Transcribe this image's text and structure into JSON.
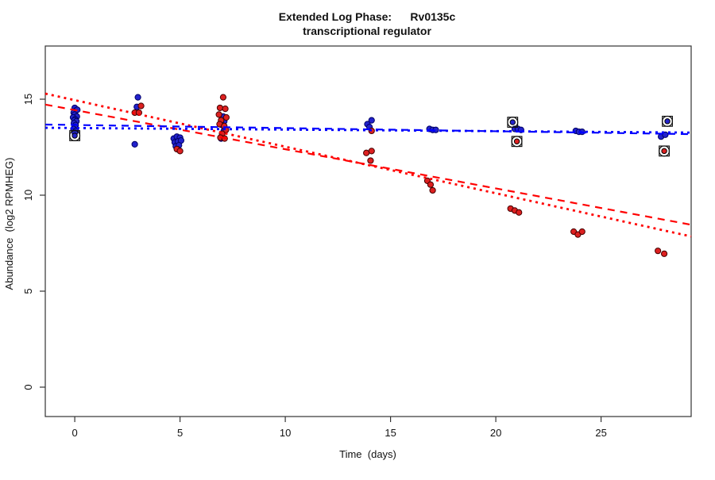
{
  "chart_data": {
    "type": "scatter",
    "title_line1": "Extended Log Phase:      Rv0135c",
    "title_line2": "transcriptional regulator",
    "xlabel": "Time  (days)",
    "ylabel": "Abundance  (log2 RPMHEG)",
    "xlim": [
      -1.4,
      29.28
    ],
    "ylim": [
      -1.53,
      17.77
    ],
    "x_ticks": [
      0,
      5,
      10,
      15,
      20,
      25
    ],
    "y_ticks": [
      0,
      5,
      10,
      15
    ],
    "grid": false,
    "legend": "none",
    "series": [
      {
        "name": "blue-condition",
        "color_fill": "#2222cc",
        "color_edge": "#000066",
        "points": [
          [
            0.0,
            14.55
          ],
          [
            0.05,
            14.4
          ],
          [
            -0.05,
            14.3
          ],
          [
            0.0,
            14.2
          ],
          [
            0.12,
            14.45
          ],
          [
            0.1,
            14.1
          ],
          [
            -0.08,
            14.05
          ],
          [
            0.02,
            13.95
          ],
          [
            -0.02,
            13.9
          ],
          [
            0.08,
            13.85
          ],
          [
            -0.04,
            13.75
          ],
          [
            0.04,
            13.65
          ],
          [
            0.0,
            13.55
          ],
          [
            -0.06,
            13.45
          ],
          [
            0.05,
            13.35
          ],
          [
            0.0,
            13.25
          ],
          [
            3.0,
            15.1
          ],
          [
            2.95,
            14.6
          ],
          [
            2.85,
            12.65
          ],
          [
            4.7,
            12.95
          ],
          [
            4.85,
            13.05
          ],
          [
            5.0,
            13.0
          ],
          [
            4.75,
            12.75
          ],
          [
            4.9,
            12.8
          ],
          [
            5.05,
            12.85
          ],
          [
            4.8,
            12.55
          ],
          [
            4.95,
            12.6
          ],
          [
            4.87,
            12.4
          ],
          [
            7.05,
            14.1
          ],
          [
            7.1,
            13.85
          ],
          [
            7.0,
            13.65
          ],
          [
            7.08,
            13.35
          ],
          [
            6.95,
            12.95
          ],
          [
            14.1,
            13.9
          ],
          [
            13.9,
            13.7
          ],
          [
            14.0,
            13.55
          ],
          [
            16.85,
            13.45
          ],
          [
            17.0,
            13.4
          ],
          [
            17.15,
            13.4
          ],
          [
            20.9,
            13.45
          ],
          [
            21.05,
            13.45
          ],
          [
            21.2,
            13.4
          ],
          [
            23.8,
            13.35
          ],
          [
            23.95,
            13.3
          ],
          [
            24.1,
            13.3
          ],
          [
            27.85,
            13.05
          ],
          [
            28.05,
            13.15
          ]
        ]
      },
      {
        "name": "red-condition",
        "color_fill": "#dd2020",
        "color_edge": "#440000",
        "points": [
          [
            3.15,
            14.65
          ],
          [
            2.85,
            14.3
          ],
          [
            3.05,
            14.3
          ],
          [
            4.85,
            12.4
          ],
          [
            5.0,
            12.3
          ],
          [
            7.05,
            15.1
          ],
          [
            6.9,
            14.55
          ],
          [
            7.15,
            14.5
          ],
          [
            6.85,
            14.2
          ],
          [
            7.2,
            14.05
          ],
          [
            6.95,
            13.9
          ],
          [
            6.88,
            13.7
          ],
          [
            7.1,
            13.6
          ],
          [
            7.18,
            13.4
          ],
          [
            7.0,
            13.2
          ],
          [
            6.92,
            13.0
          ],
          [
            7.12,
            12.95
          ],
          [
            14.1,
            13.35
          ],
          [
            14.1,
            12.3
          ],
          [
            13.85,
            12.2
          ],
          [
            14.05,
            11.8
          ],
          [
            16.75,
            10.75
          ],
          [
            16.9,
            10.55
          ],
          [
            17.0,
            10.25
          ],
          [
            20.7,
            9.3
          ],
          [
            20.9,
            9.2
          ],
          [
            21.1,
            9.1
          ],
          [
            23.7,
            8.1
          ],
          [
            23.9,
            7.95
          ],
          [
            24.1,
            8.1
          ],
          [
            27.7,
            7.1
          ],
          [
            28.0,
            6.95
          ]
        ]
      }
    ],
    "flagged_points": [
      {
        "series": "blue-condition",
        "x": 0.0,
        "y": 13.1,
        "fill": "#2222cc"
      },
      {
        "series": "blue-condition",
        "x": 20.8,
        "y": 13.8,
        "fill": "#2222cc"
      },
      {
        "series": "blue-condition",
        "x": 28.15,
        "y": 13.85,
        "fill": "#2222cc"
      },
      {
        "series": "red-condition",
        "x": 21.0,
        "y": 12.8,
        "fill": "#dd2020"
      },
      {
        "series": "red-condition",
        "x": 28.0,
        "y": 12.3,
        "fill": "#dd2020"
      }
    ],
    "trend_lines": [
      {
        "name": "red-dashed-fit",
        "color": "#ff0000",
        "style": "dashed",
        "y_start": 14.72,
        "y_end": 8.46
      },
      {
        "name": "red-dotted-fit",
        "color": "#ff0000",
        "style": "dotted",
        "y_start": 15.29,
        "y_end": 7.85
      },
      {
        "name": "blue-dashed-fit",
        "color": "#0000ff",
        "style": "dashed",
        "y_start": 13.68,
        "y_end": 13.18
      },
      {
        "name": "blue-dotted-fit",
        "color": "#0000ff",
        "style": "dotted",
        "y_start": 13.51,
        "y_end": 13.26
      }
    ],
    "colors": {
      "blue_line": "#0000ff",
      "red_line": "#ff0000",
      "axis": "#333333",
      "flag_ring": "#111111"
    }
  }
}
